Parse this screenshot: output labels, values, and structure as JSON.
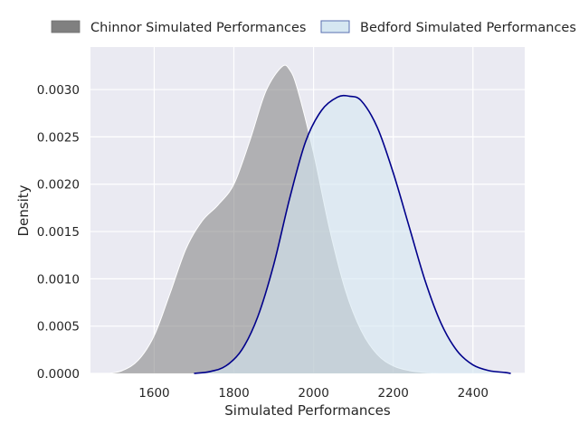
{
  "chart_data": {
    "type": "area",
    "xlabel": "Simulated Performances",
    "ylabel": "Density",
    "xlim": [
      1440,
      2530
    ],
    "ylim": [
      0,
      0.00345
    ],
    "xticks": [
      1600,
      1800,
      2000,
      2200,
      2400
    ],
    "yticks": [
      0.0,
      0.0005,
      0.001,
      0.0015,
      0.002,
      0.0025,
      0.003
    ],
    "ytick_labels": [
      "0.0000",
      "0.0005",
      "0.0010",
      "0.0015",
      "0.0020",
      "0.0025",
      "0.0030"
    ],
    "grid": true,
    "legend_position": "top",
    "series": [
      {
        "name": "Chinnor Simulated Performances",
        "fill_color": "#808080",
        "line_color": "#ffffff",
        "fill_opacity": 0.55,
        "x": [
          1485,
          1520,
          1560,
          1600,
          1640,
          1680,
          1720,
          1760,
          1800,
          1840,
          1880,
          1920,
          1940,
          1960,
          2000,
          2040,
          2080,
          2120,
          2160,
          2200,
          2240,
          2280,
          2320
        ],
        "y": [
          0.0,
          3e-05,
          0.00014,
          0.0004,
          0.00085,
          0.00132,
          0.00161,
          0.00178,
          0.002,
          0.00246,
          0.00298,
          0.00324,
          0.00321,
          0.003,
          0.00233,
          0.00153,
          0.00088,
          0.00045,
          0.0002,
          8e-05,
          3e-05,
          1e-05,
          0.0
        ]
      },
      {
        "name": "Bedford Simulated Performances",
        "fill_color": "#d6e7f2",
        "line_color": "#00008b",
        "fill_opacity": 0.6,
        "x": [
          1700,
          1740,
          1780,
          1820,
          1860,
          1900,
          1940,
          1980,
          2020,
          2060,
          2090,
          2120,
          2160,
          2200,
          2240,
          2280,
          2320,
          2360,
          2400,
          2440,
          2480,
          2495
        ],
        "y": [
          0.0,
          2e-05,
          8e-05,
          0.00025,
          0.0006,
          0.00115,
          0.00185,
          0.00245,
          0.00278,
          0.00292,
          0.00293,
          0.00288,
          0.0026,
          0.00212,
          0.00155,
          0.00098,
          0.00053,
          0.00024,
          9e-05,
          3e-05,
          1e-05,
          0.0
        ]
      }
    ]
  }
}
